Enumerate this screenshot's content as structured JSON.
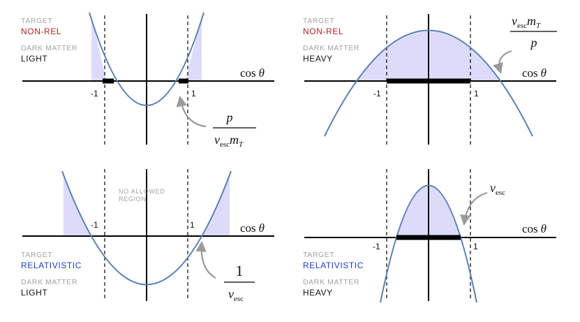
{
  "colors": {
    "curve": "#5b7fb5",
    "fill": "#dcdcfa",
    "nonrel": "#b22222",
    "relativistic": "#1a3fc7",
    "muted": "#a3a3a3",
    "ink": "#000000",
    "arrow": "#9a9a9a"
  },
  "panels": [
    {
      "target_label": "TARGET",
      "target_value": "NON-REL",
      "dm_label": "DARK MATTER",
      "dm_value": "LIGHT",
      "axis_label_fn": "cos",
      "axis_label_var": "θ",
      "tick_neg": "-1",
      "tick_pos": "1",
      "annotation": {
        "num": "p",
        "den": "v",
        "den_sub": "esc",
        "den_tail": "m",
        "den_tail_sub": "T"
      }
    },
    {
      "target_label": "TARGET",
      "target_value": "NON-REL",
      "dm_label": "DARK MATTER",
      "dm_value": "HEAVY",
      "axis_label_fn": "cos",
      "axis_label_var": "θ",
      "tick_neg": "-1",
      "tick_pos": "1",
      "annotation": {
        "num": "v",
        "num_sub": "esc",
        "num_tail": "m",
        "num_tail_sub": "T",
        "den": "p"
      }
    },
    {
      "target_label": "TARGET",
      "target_value": "RELATIVISTIC",
      "dm_label": "DARK MATTER",
      "dm_value": "LIGHT",
      "axis_label_fn": "cos",
      "axis_label_var": "θ",
      "tick_neg": "-1",
      "tick_pos": "1",
      "note_line1": "NO ALLOWED",
      "note_line2": "REGION",
      "annotation": {
        "num": "1",
        "den": "v",
        "den_sub": "esc"
      }
    },
    {
      "target_label": "TARGET",
      "target_value": "RELATIVISTIC",
      "dm_label": "DARK MATTER",
      "dm_value": "HEAVY",
      "axis_label_fn": "cos",
      "axis_label_var": "θ",
      "tick_neg": "-1",
      "tick_pos": "1",
      "annotation": {
        "text": "v",
        "sub": "esc"
      }
    }
  ]
}
